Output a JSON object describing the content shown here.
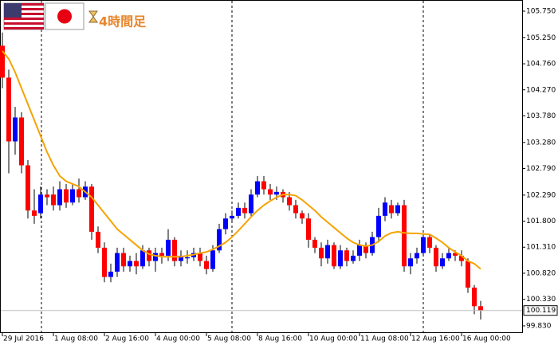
{
  "chart_data": {
    "type": "candlestick",
    "title": "4時間足",
    "categories": [
      "29 Jul 2016",
      null,
      null,
      null,
      null,
      null,
      null,
      null,
      "1 Aug 08:00",
      null,
      null,
      null,
      null,
      null,
      null,
      null,
      "2 Aug 16:00",
      null,
      null,
      null,
      null,
      null,
      null,
      null,
      "4 Aug 00:00",
      null,
      null,
      null,
      null,
      null,
      null,
      null,
      "5 Aug 08:00",
      null,
      null,
      null,
      null,
      null,
      null,
      null,
      "8 Aug 16:00",
      null,
      null,
      null,
      null,
      null,
      null,
      null,
      "10 Aug 00:00",
      null,
      null,
      null,
      null,
      null,
      null,
      null,
      "11 Aug 08:00",
      null,
      null,
      null,
      null,
      null,
      null,
      null,
      "12 Aug 16:00",
      null,
      null,
      null,
      null,
      null,
      null,
      null,
      "16 Aug 00:00",
      null,
      null,
      null
    ],
    "open": [
      105.1,
      104.5,
      103.3,
      103.75,
      102.85,
      102.0,
      101.95,
      102.3,
      102.3,
      102.1,
      102.4,
      102.15,
      102.4,
      102.25,
      102.45,
      101.6,
      101.3,
      100.75,
      100.85,
      101.2,
      100.95,
      101.05,
      100.95,
      101.25,
      101.05,
      101.2,
      101.15,
      101.45,
      101.05,
      101.1,
      101.12,
      101.2,
      101.05,
      100.9,
      101.25,
      101.65,
      101.85,
      101.9,
      102.05,
      101.95,
      102.3,
      102.55,
      102.4,
      102.3,
      102.35,
      102.25,
      102.1,
      101.95,
      101.85,
      101.45,
      101.3,
      101.1,
      101.35,
      100.95,
      101.25,
      101.05,
      101.15,
      101.35,
      101.2,
      101.5,
      101.9,
      102.1,
      101.95,
      102.1,
      100.95,
      101.1,
      101.2,
      101.5,
      101.3,
      100.95,
      101.1,
      101.2,
      101.15,
      101.05,
      100.55,
      100.2
    ],
    "high": [
      105.35,
      104.65,
      103.95,
      103.85,
      102.95,
      102.4,
      102.45,
      102.4,
      102.45,
      102.55,
      102.5,
      102.5,
      102.6,
      102.55,
      102.5,
      101.7,
      101.4,
      101.0,
      101.3,
      101.3,
      101.15,
      101.2,
      101.35,
      101.3,
      101.3,
      101.3,
      101.65,
      101.5,
      101.25,
      101.25,
      101.3,
      101.3,
      101.15,
      101.35,
      101.75,
      101.95,
      102.0,
      102.15,
      102.15,
      102.4,
      102.65,
      102.65,
      102.5,
      102.45,
      102.4,
      102.35,
      102.2,
      102.0,
      101.95,
      101.5,
      101.4,
      101.45,
      101.4,
      101.35,
      101.3,
      101.25,
      101.45,
      101.4,
      101.6,
      102.05,
      102.25,
      102.2,
      102.15,
      102.2,
      101.2,
      101.3,
      101.55,
      101.55,
      101.35,
      101.2,
      101.3,
      101.25,
      101.25,
      101.1,
      100.6,
      100.3
    ],
    "low": [
      104.3,
      102.7,
      103.05,
      102.7,
      101.85,
      101.75,
      101.85,
      102.1,
      102.0,
      102.0,
      102.05,
      102.1,
      102.15,
      102.2,
      101.45,
      101.2,
      100.65,
      100.65,
      100.75,
      100.85,
      100.85,
      100.8,
      100.9,
      100.95,
      100.85,
      101.0,
      101.05,
      100.95,
      100.95,
      101.0,
      101.05,
      100.95,
      100.8,
      100.85,
      101.2,
      101.55,
      101.8,
      101.85,
      101.85,
      101.9,
      102.25,
      102.3,
      102.2,
      102.2,
      102.15,
      102.0,
      101.85,
      101.75,
      101.3,
      101.2,
      100.95,
      101.0,
      100.9,
      100.9,
      100.95,
      101.0,
      101.05,
      101.1,
      101.15,
      101.4,
      101.8,
      101.85,
      101.9,
      100.85,
      100.8,
      101.0,
      101.15,
      101.2,
      100.85,
      100.9,
      101.05,
      101.05,
      100.95,
      100.45,
      100.05,
      99.95
    ],
    "close": [
      104.5,
      103.3,
      103.75,
      102.85,
      102.0,
      101.9,
      102.3,
      102.25,
      102.1,
      102.4,
      102.15,
      102.4,
      102.25,
      102.45,
      101.6,
      101.3,
      100.75,
      100.85,
      101.2,
      100.95,
      101.05,
      100.95,
      101.25,
      101.05,
      101.2,
      101.15,
      101.45,
      101.05,
      101.15,
      101.12,
      101.2,
      101.05,
      100.9,
      101.25,
      101.65,
      101.85,
      101.9,
      102.05,
      101.95,
      102.3,
      102.55,
      102.4,
      102.3,
      102.35,
      102.25,
      102.1,
      101.95,
      101.85,
      101.45,
      101.3,
      101.1,
      101.35,
      100.95,
      101.25,
      101.05,
      101.15,
      101.35,
      101.2,
      101.5,
      101.9,
      102.15,
      101.95,
      102.1,
      100.95,
      101.1,
      101.2,
      101.5,
      101.3,
      100.95,
      101.1,
      101.2,
      101.15,
      101.05,
      100.55,
      100.2,
      100.119
    ],
    "ma": {
      "color": "#f5a300",
      "values": [
        105.0,
        104.85,
        104.6,
        104.3,
        104.0,
        103.7,
        103.4,
        103.1,
        102.85,
        102.65,
        102.55,
        102.5,
        102.45,
        102.35,
        102.25,
        102.1,
        101.95,
        101.8,
        101.65,
        101.55,
        101.45,
        101.35,
        101.25,
        101.18,
        101.15,
        101.13,
        101.13,
        101.13,
        101.13,
        101.15,
        101.17,
        101.2,
        101.22,
        101.27,
        101.33,
        101.4,
        101.5,
        101.62,
        101.75,
        101.88,
        102.0,
        102.1,
        102.18,
        102.25,
        102.3,
        102.3,
        102.28,
        102.2,
        102.1,
        102.0,
        101.88,
        101.78,
        101.68,
        101.58,
        101.48,
        101.4,
        101.35,
        101.33,
        101.35,
        101.42,
        101.52,
        101.58,
        101.6,
        101.58,
        101.57,
        101.57,
        101.56,
        101.55,
        101.48,
        101.4,
        101.3,
        101.22,
        101.15,
        101.05,
        101.0,
        100.9
      ]
    },
    "up_color": "#0000ff",
    "down_color": "#ff0000",
    "last_price": {
      "value": 100.119,
      "label": "100.119"
    },
    "ylim": [
      99.695,
      105.96
    ],
    "yticks": [
      {
        "value": 99.83,
        "label": "99.830"
      },
      {
        "value": 100.33,
        "label": "100.330"
      },
      {
        "value": 100.82,
        "label": "100.820"
      },
      {
        "value": 101.31,
        "label": "101.310"
      },
      {
        "value": 101.8,
        "label": "101.800"
      },
      {
        "value": 102.29,
        "label": "102.290"
      },
      {
        "value": 102.79,
        "label": "102.790"
      },
      {
        "value": 103.28,
        "label": "103.280"
      },
      {
        "value": 103.78,
        "label": "103.780"
      },
      {
        "value": 104.27,
        "label": "104.270"
      },
      {
        "value": 104.76,
        "label": "104.760"
      },
      {
        "value": 105.25,
        "label": "105.250"
      },
      {
        "value": 105.75,
        "label": "105.750"
      }
    ]
  }
}
